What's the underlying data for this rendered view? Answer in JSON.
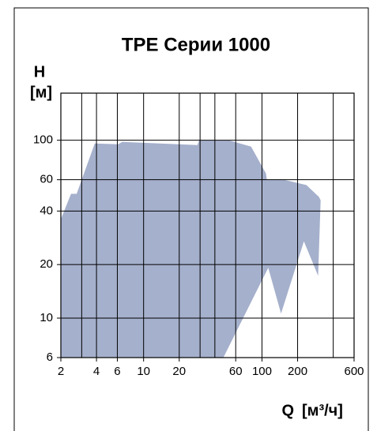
{
  "chart_data": {
    "type": "area",
    "title": "TPE Серии 1000",
    "y_label": "H",
    "y_unit": "[м]",
    "x_label": "Q",
    "x_unit": "[м³/ч]",
    "x": [
      2,
      2,
      2.44,
      2.72,
      3.87,
      6.1,
      6.6,
      28.5,
      29.5,
      52.6,
      80.9,
      108,
      110,
      154,
      237,
      303,
      313,
      298,
      226,
      145,
      113,
      47.2
    ],
    "values": [
      6,
      36,
      50,
      50,
      96,
      95,
      98,
      94,
      100,
      100,
      92,
      65,
      60,
      60,
      56,
      48,
      46,
      17.3,
      27,
      10.6,
      19.2,
      6
    ],
    "color": "#a5b0cc",
    "log_x": true,
    "log_y": true,
    "grid": true,
    "xlim": [
      2,
      600
    ],
    "ylim": [
      6,
      184
    ],
    "xticks": [
      2,
      4,
      6,
      10,
      20,
      60,
      100,
      200,
      600
    ],
    "xgrid_minor": [
      3,
      30,
      40,
      400
    ],
    "yticks": [
      6,
      10,
      20,
      40,
      60,
      100
    ]
  }
}
